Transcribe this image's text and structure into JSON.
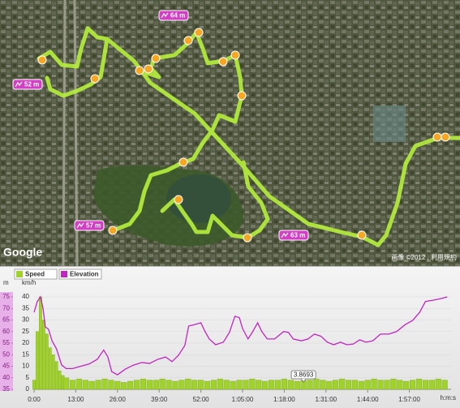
{
  "map": {
    "markers": [
      {
        "label": "52 m"
      },
      {
        "label": "64 m"
      },
      {
        "label": "57 m"
      },
      {
        "label": "63 m"
      }
    ],
    "logo": "Google",
    "copyright": "画像 ©2012 , 利用規約"
  },
  "chart_data": {
    "type": "bar_line",
    "legend": [
      "Speed",
      "Elevation"
    ],
    "ylabel": "km/h",
    "y2label": "m",
    "xlabel": "h:m:s",
    "xlim": [
      0,
      130
    ],
    "xticks": [
      {
        "value": 0,
        "label": "0:00"
      },
      {
        "value": 13,
        "label": "13:00"
      },
      {
        "value": 26,
        "label": "26:00"
      },
      {
        "value": 39,
        "label": "39:00"
      },
      {
        "value": 52,
        "label": "52:00"
      },
      {
        "value": 65,
        "label": "1:05:00"
      },
      {
        "value": 78,
        "label": "1:18:00"
      },
      {
        "value": 91,
        "label": "1:31:00"
      },
      {
        "value": 104,
        "label": "1:44:00"
      },
      {
        "value": 117,
        "label": "1:57:00"
      }
    ],
    "ylim": [
      0,
      40
    ],
    "yticks": [
      0,
      5,
      10,
      15,
      20,
      25,
      30,
      35,
      40
    ],
    "y2lim": [
      35,
      75
    ],
    "y2ticks": [
      35,
      40,
      45,
      50,
      55,
      60,
      65,
      70,
      75
    ],
    "grid": true,
    "series": [
      {
        "name": "Speed",
        "color": "#9fd22a",
        "type": "bar",
        "x": [
          0,
          1,
          2,
          3,
          4,
          5,
          6,
          7,
          8,
          9,
          10,
          12,
          14,
          16,
          18,
          20,
          22,
          24,
          26,
          28,
          30,
          32,
          34,
          36,
          38,
          40,
          42,
          44,
          46,
          48,
          50,
          52,
          54,
          56,
          58,
          60,
          62,
          64,
          66,
          68,
          70,
          72,
          74,
          76,
          78,
          80,
          82,
          84,
          86,
          88,
          90,
          92,
          94,
          96,
          98,
          100,
          102,
          104,
          106,
          108,
          110,
          112,
          114,
          116,
          118,
          120,
          122,
          124,
          126,
          128
        ],
        "values": [
          4,
          25,
          40,
          30,
          24,
          18,
          15,
          12,
          8,
          6,
          5,
          4,
          4.5,
          4,
          3.5,
          4,
          4.5,
          4,
          3.5,
          3,
          3.5,
          4,
          4.5,
          4,
          4,
          4.5,
          4,
          3.5,
          4,
          4.5,
          4,
          4,
          3.5,
          4,
          4.5,
          4,
          3.5,
          4,
          4,
          4.5,
          4,
          3.5,
          4,
          4,
          4.5,
          4,
          3.5,
          3.8693,
          4,
          4.5,
          4,
          3.5,
          4,
          4.5,
          4,
          4,
          3.5,
          4,
          4.5,
          4,
          4,
          4.5,
          4,
          3.5,
          4,
          4.5,
          4,
          4,
          4.5,
          4
        ]
      },
      {
        "name": "Elevation",
        "color": "#c025c0",
        "type": "line",
        "axis": "y2",
        "x": [
          0,
          1,
          2,
          2.8,
          3.5,
          4.5,
          5.6,
          7,
          8.6,
          10,
          12,
          14.6,
          17.2,
          19.7,
          21.7,
          23,
          24.2,
          26,
          28.5,
          31,
          33.6,
          36,
          38.6,
          41,
          43,
          45,
          47,
          48.2,
          50,
          52,
          53.3,
          54.6,
          56.6,
          59,
          60.9,
          62.6,
          64,
          65,
          66.7,
          68,
          69.7,
          71,
          72.7,
          75,
          77.8,
          79.3,
          80.8,
          83.3,
          85.4,
          87.4,
          89.4,
          91.4,
          93.4,
          95.5,
          97.5,
          99.5,
          101.5,
          103.5,
          105.6,
          108,
          110.6,
          113,
          115.7,
          118,
          120.2,
          122,
          124.5,
          127,
          128.8
        ],
        "values": [
          68.3,
          73,
          75,
          70,
          62,
          61,
          56,
          52.5,
          45.5,
          44,
          44,
          45,
          46,
          48,
          52,
          49,
          42.7,
          41.3,
          43.8,
          45.5,
          46.6,
          46.2,
          48,
          49,
          47,
          49.7,
          54,
          62.4,
          63,
          63.8,
          60,
          56.8,
          54.3,
          55.4,
          59.6,
          66.6,
          66,
          61.3,
          56.8,
          59.6,
          63.8,
          60,
          56.8,
          56.8,
          60,
          59.6,
          56.8,
          56,
          56.8,
          58.9,
          58,
          55.4,
          54.3,
          55.4,
          54.3,
          54.6,
          56.4,
          55.4,
          56,
          58.9,
          58.9,
          60,
          63,
          64.8,
          68.3,
          73,
          73.6,
          74.3,
          75
        ]
      }
    ],
    "annotations": [
      {
        "x": 84,
        "value": 3.8693
      }
    ]
  }
}
